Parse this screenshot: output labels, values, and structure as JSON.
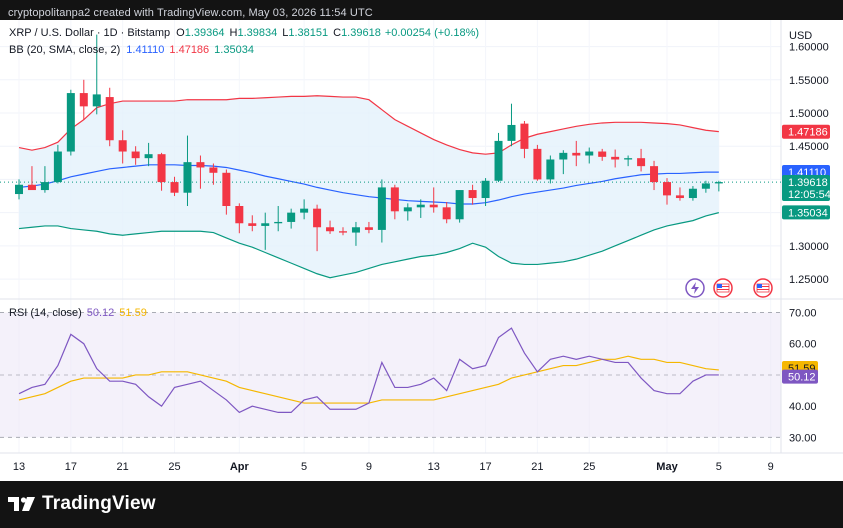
{
  "header": {
    "credit": "cryptopolitanpa2 created with TradingView.com, May 03, 2026 11:54 UTC"
  },
  "legend": {
    "symbol": "XRP / U.S. Dollar · 1D · Bitstamp",
    "o_label": "O",
    "o_value": "1.39364",
    "h_label": "H",
    "h_value": "1.39834",
    "l_label": "L",
    "l_value": "1.38151",
    "c_label": "C",
    "c_value": "1.39618",
    "change": "+0.00254 (+0.18%)",
    "bb_label": "BB (20, SMA, close, 2)",
    "bb_mid": "1.41110",
    "bb_upper": "1.47186",
    "bb_lower": "1.35034"
  },
  "rsi_legend": {
    "label": "RSI (14, close)",
    "rsi_value": "50.12",
    "ma_value": "51.59"
  },
  "price_axis": {
    "currency": "USD",
    "ticks": [
      "1.60000",
      "1.55000",
      "1.50000",
      "1.45000",
      "1.40000",
      "1.35000",
      "1.30000",
      "1.25000"
    ],
    "tick_values": [
      1.6,
      1.55,
      1.5,
      1.45,
      1.4,
      1.35,
      1.3,
      1.25
    ],
    "badges": [
      {
        "id": "upper",
        "text": "1.47186",
        "value": 1.47186,
        "color": "#f23645"
      },
      {
        "id": "mid",
        "text": "1.41110",
        "value": 1.4111,
        "color": "#2962ff"
      },
      {
        "id": "price",
        "text": "1.39618",
        "value": 1.39618,
        "color": "#089981",
        "countdown": "12:05:54"
      },
      {
        "id": "lower",
        "text": "1.35034",
        "value": 1.35034,
        "color": "#089981"
      }
    ]
  },
  "rsi_axis": {
    "ticks": [
      "70.00",
      "60.00",
      "50.00",
      "40.00",
      "30.00"
    ],
    "tick_values": [
      70,
      60,
      50,
      40,
      30
    ],
    "badges": [
      {
        "id": "rsi-ma",
        "text": "51.59",
        "value": 51.59,
        "color": "#f5b700"
      },
      {
        "id": "rsi",
        "text": "50.12",
        "value": 50.12,
        "color": "#7e57c2"
      }
    ]
  },
  "time_axis": {
    "labels": [
      "13",
      "17",
      "21",
      "25",
      "Apr",
      "5",
      "9",
      "13",
      "17",
      "21",
      "25",
      "May",
      "5",
      "9"
    ],
    "bold": [
      "Apr",
      "May"
    ]
  },
  "footer": {
    "brand": "TradingView"
  },
  "colors": {
    "up": "#089981",
    "down": "#f23645",
    "bb_basis": "#2962ff",
    "bb_upper": "#f23645",
    "bb_lower": "#089981",
    "bb_fill": "#e3f1fb",
    "rsi": "#7e57c2",
    "rsi_ma": "#f5b700",
    "rsi_band": "#ede7f6"
  },
  "chart_data": {
    "type": "candlestick",
    "title": "XRP / U.S. Dollar · 1D · Bitstamp",
    "ylabel": "USD",
    "ylim": [
      1.22,
      1.64
    ],
    "x_labels": [
      "13",
      "17",
      "21",
      "25",
      "Apr",
      "5",
      "9",
      "13",
      "17",
      "21",
      "25",
      "May",
      "5",
      "9"
    ],
    "candles": [
      {
        "o": 1.378,
        "h": 1.4,
        "l": 1.37,
        "c": 1.392
      },
      {
        "o": 1.392,
        "h": 1.42,
        "l": 1.386,
        "c": 1.384
      },
      {
        "o": 1.384,
        "h": 1.42,
        "l": 1.38,
        "c": 1.396
      },
      {
        "o": 1.396,
        "h": 1.452,
        "l": 1.394,
        "c": 1.442
      },
      {
        "o": 1.442,
        "h": 1.535,
        "l": 1.436,
        "c": 1.53
      },
      {
        "o": 1.53,
        "h": 1.55,
        "l": 1.49,
        "c": 1.51
      },
      {
        "o": 1.51,
        "h": 1.618,
        "l": 1.498,
        "c": 1.528
      },
      {
        "o": 1.524,
        "h": 1.538,
        "l": 1.45,
        "c": 1.459
      },
      {
        "o": 1.459,
        "h": 1.474,
        "l": 1.424,
        "c": 1.442
      },
      {
        "o": 1.442,
        "h": 1.45,
        "l": 1.422,
        "c": 1.432
      },
      {
        "o": 1.432,
        "h": 1.455,
        "l": 1.42,
        "c": 1.438
      },
      {
        "o": 1.438,
        "h": 1.44,
        "l": 1.383,
        "c": 1.396
      },
      {
        "o": 1.396,
        "h": 1.404,
        "l": 1.375,
        "c": 1.38
      },
      {
        "o": 1.38,
        "h": 1.466,
        "l": 1.36,
        "c": 1.426
      },
      {
        "o": 1.426,
        "h": 1.436,
        "l": 1.386,
        "c": 1.418
      },
      {
        "o": 1.418,
        "h": 1.424,
        "l": 1.392,
        "c": 1.41
      },
      {
        "o": 1.41,
        "h": 1.415,
        "l": 1.347,
        "c": 1.36
      },
      {
        "o": 1.36,
        "h": 1.364,
        "l": 1.319,
        "c": 1.334
      },
      {
        "o": 1.334,
        "h": 1.346,
        "l": 1.322,
        "c": 1.33
      },
      {
        "o": 1.33,
        "h": 1.35,
        "l": 1.294,
        "c": 1.334
      },
      {
        "o": 1.334,
        "h": 1.36,
        "l": 1.322,
        "c": 1.336
      },
      {
        "o": 1.336,
        "h": 1.356,
        "l": 1.326,
        "c": 1.35
      },
      {
        "o": 1.35,
        "h": 1.37,
        "l": 1.34,
        "c": 1.356
      },
      {
        "o": 1.356,
        "h": 1.362,
        "l": 1.292,
        "c": 1.328
      },
      {
        "o": 1.328,
        "h": 1.338,
        "l": 1.318,
        "c": 1.322
      },
      {
        "o": 1.322,
        "h": 1.328,
        "l": 1.316,
        "c": 1.32
      },
      {
        "o": 1.32,
        "h": 1.336,
        "l": 1.3,
        "c": 1.328
      },
      {
        "o": 1.328,
        "h": 1.336,
        "l": 1.319,
        "c": 1.324
      },
      {
        "o": 1.324,
        "h": 1.4,
        "l": 1.305,
        "c": 1.388
      },
      {
        "o": 1.388,
        "h": 1.392,
        "l": 1.34,
        "c": 1.352
      },
      {
        "o": 1.352,
        "h": 1.364,
        "l": 1.338,
        "c": 1.358
      },
      {
        "o": 1.358,
        "h": 1.37,
        "l": 1.342,
        "c": 1.362
      },
      {
        "o": 1.362,
        "h": 1.388,
        "l": 1.35,
        "c": 1.358
      },
      {
        "o": 1.358,
        "h": 1.366,
        "l": 1.334,
        "c": 1.34
      },
      {
        "o": 1.34,
        "h": 1.384,
        "l": 1.335,
        "c": 1.384
      },
      {
        "o": 1.384,
        "h": 1.392,
        "l": 1.362,
        "c": 1.372
      },
      {
        "o": 1.372,
        "h": 1.402,
        "l": 1.36,
        "c": 1.398
      },
      {
        "o": 1.398,
        "h": 1.47,
        "l": 1.396,
        "c": 1.458
      },
      {
        "o": 1.458,
        "h": 1.514,
        "l": 1.45,
        "c": 1.482
      },
      {
        "o": 1.484,
        "h": 1.488,
        "l": 1.432,
        "c": 1.446
      },
      {
        "o": 1.446,
        "h": 1.452,
        "l": 1.398,
        "c": 1.4
      },
      {
        "o": 1.4,
        "h": 1.436,
        "l": 1.394,
        "c": 1.43
      },
      {
        "o": 1.43,
        "h": 1.444,
        "l": 1.408,
        "c": 1.44
      },
      {
        "o": 1.44,
        "h": 1.458,
        "l": 1.42,
        "c": 1.436
      },
      {
        "o": 1.436,
        "h": 1.448,
        "l": 1.424,
        "c": 1.442
      },
      {
        "o": 1.442,
        "h": 1.446,
        "l": 1.428,
        "c": 1.434
      },
      {
        "o": 1.434,
        "h": 1.445,
        "l": 1.418,
        "c": 1.43
      },
      {
        "o": 1.43,
        "h": 1.436,
        "l": 1.42,
        "c": 1.432
      },
      {
        "o": 1.432,
        "h": 1.446,
        "l": 1.412,
        "c": 1.42
      },
      {
        "o": 1.42,
        "h": 1.428,
        "l": 1.384,
        "c": 1.396
      },
      {
        "o": 1.396,
        "h": 1.402,
        "l": 1.362,
        "c": 1.376
      },
      {
        "o": 1.376,
        "h": 1.388,
        "l": 1.368,
        "c": 1.372
      },
      {
        "o": 1.372,
        "h": 1.39,
        "l": 1.368,
        "c": 1.386
      },
      {
        "o": 1.386,
        "h": 1.398,
        "l": 1.38,
        "c": 1.394
      },
      {
        "o": 1.394,
        "h": 1.398,
        "l": 1.382,
        "c": 1.396
      }
    ],
    "series": [
      {
        "name": "BB upper",
        "values": [
          1.448,
          1.444,
          1.448,
          1.456,
          1.476,
          1.49,
          1.508,
          1.514,
          1.518,
          1.518,
          1.518,
          1.518,
          1.518,
          1.52,
          1.52,
          1.52,
          1.52,
          1.522,
          1.522,
          1.523,
          1.524,
          1.525,
          1.525,
          1.526,
          1.525,
          1.524,
          1.524,
          1.52,
          1.505,
          1.49,
          1.48,
          1.47,
          1.46,
          1.452,
          1.445,
          1.44,
          1.438,
          1.44,
          1.452,
          1.462,
          1.468,
          1.472,
          1.476,
          1.48,
          1.483,
          1.485,
          1.486,
          1.486,
          1.486,
          1.485,
          1.484,
          1.482,
          1.478,
          1.474,
          1.472
        ]
      },
      {
        "name": "BB basis",
        "values": [
          1.388,
          1.39,
          1.393,
          1.398,
          1.404,
          1.408,
          1.412,
          1.416,
          1.418,
          1.42,
          1.422,
          1.422,
          1.422,
          1.421,
          1.421,
          1.42,
          1.418,
          1.414,
          1.41,
          1.405,
          1.401,
          1.397,
          1.393,
          1.388,
          1.384,
          1.38,
          1.377,
          1.374,
          1.372,
          1.37,
          1.368,
          1.367,
          1.366,
          1.365,
          1.363,
          1.363,
          1.365,
          1.369,
          1.374,
          1.378,
          1.381,
          1.384,
          1.387,
          1.391,
          1.394,
          1.397,
          1.401,
          1.404,
          1.407,
          1.408,
          1.409,
          1.409,
          1.41,
          1.411,
          1.411
        ]
      },
      {
        "name": "BB lower",
        "values": [
          1.326,
          1.328,
          1.33,
          1.33,
          1.326,
          1.324,
          1.322,
          1.318,
          1.316,
          1.318,
          1.32,
          1.322,
          1.322,
          1.322,
          1.322,
          1.32,
          1.312,
          1.304,
          1.298,
          1.29,
          1.282,
          1.274,
          1.266,
          1.258,
          1.252,
          1.256,
          1.26,
          1.266,
          1.272,
          1.276,
          1.28,
          1.284,
          1.286,
          1.29,
          1.296,
          1.304,
          1.298,
          1.284,
          1.274,
          1.272,
          1.272,
          1.274,
          1.276,
          1.28,
          1.286,
          1.292,
          1.3,
          1.308,
          1.316,
          1.324,
          1.33,
          1.334,
          1.338,
          1.345,
          1.35
        ]
      },
      {
        "name": "RSI",
        "values": [
          44,
          46,
          47,
          53,
          63,
          60,
          52,
          48,
          48,
          47,
          43,
          40,
          46,
          47,
          48,
          45,
          42,
          38,
          40,
          39,
          38,
          38,
          42,
          43,
          39,
          39,
          39,
          41,
          54,
          46,
          46,
          47,
          49,
          45,
          55,
          52,
          53,
          62,
          65,
          57,
          51,
          55,
          56,
          55,
          56,
          55,
          54,
          54,
          49,
          45,
          44,
          44,
          48,
          50,
          50
        ]
      },
      {
        "name": "RSI-based MA",
        "values": [
          42,
          43,
          44,
          46,
          48,
          49,
          49,
          49,
          49,
          50,
          50,
          51,
          51,
          51,
          50,
          49,
          48,
          46,
          45,
          44,
          43,
          42,
          41,
          41,
          41,
          41,
          41,
          41,
          42,
          42,
          42,
          42,
          42,
          43,
          44,
          45,
          46,
          47,
          49,
          50,
          51,
          52,
          53,
          53,
          54,
          55,
          55,
          56,
          55,
          55,
          54,
          54,
          53,
          52,
          51.6
        ]
      }
    ],
    "rsi_ylim": [
      25,
      74
    ],
    "rsi_band": [
      30,
      70
    ]
  }
}
